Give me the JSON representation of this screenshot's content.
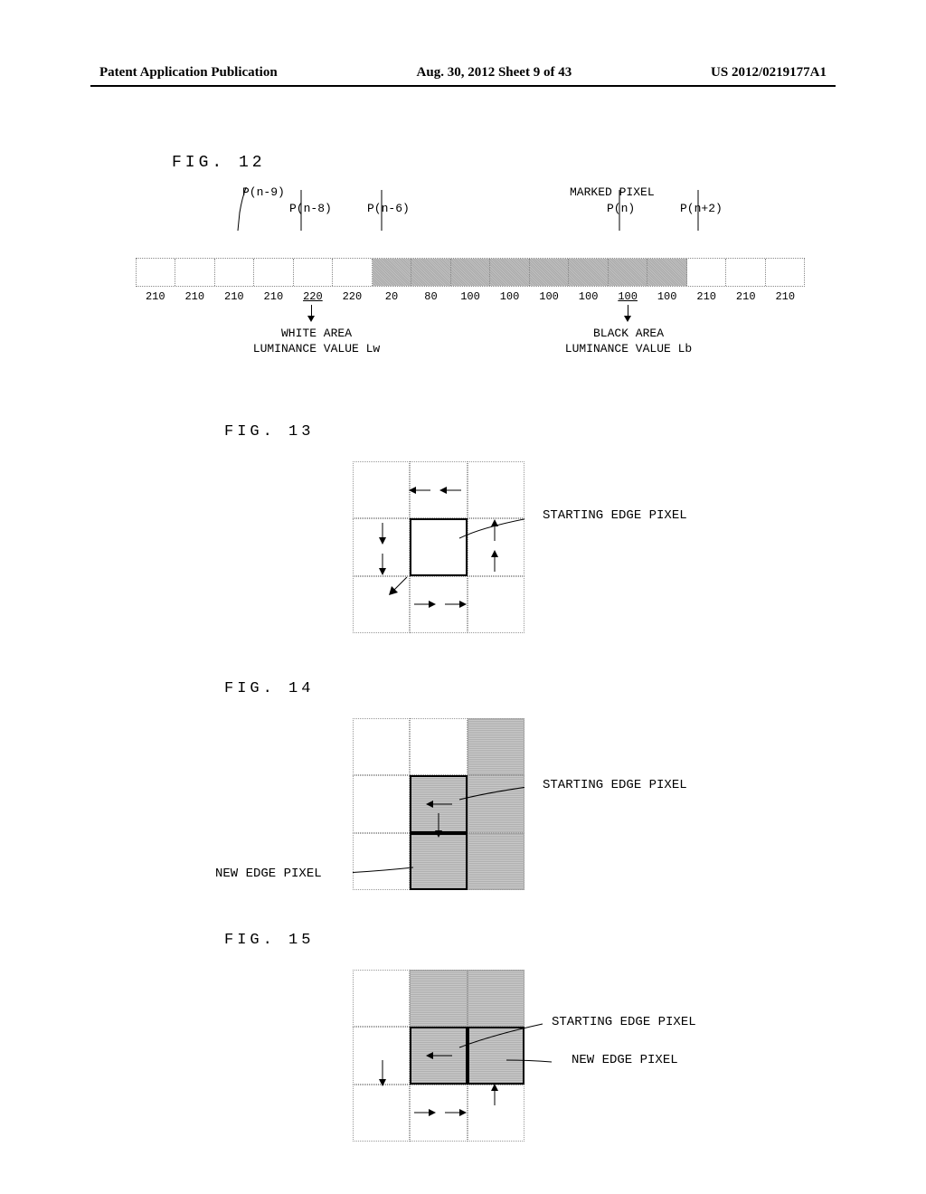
{
  "header": {
    "left": "Patent Application Publication",
    "mid": "Aug. 30, 2012  Sheet 9 of 43",
    "right": "US 2012/0219177A1"
  },
  "fig12": {
    "title": "FIG. 12",
    "topLabels": {
      "pn9": "P(n-9)",
      "pn8": "P(n-8)",
      "pn6": "P(n-6)",
      "marked": "MARKED PIXEL",
      "pn": "P(n)",
      "pn2": "P(n+2)"
    },
    "values": [
      "210",
      "210",
      "210",
      "210",
      "220",
      "220",
      "20",
      "80",
      "100",
      "100",
      "100",
      "100",
      "100",
      "100",
      "210",
      "210",
      "210"
    ],
    "whiteLabel1": "WHITE AREA",
    "whiteLabel2": "LUMINANCE VALUE Lw",
    "blackLabel1": "BLACK AREA",
    "blackLabel2": "LUMINANCE VALUE Lb",
    "underlineIdx1": 4,
    "underlineIdx2": 12,
    "shadedStart": 6,
    "shadedEnd": 13
  },
  "fig13": {
    "title": "FIG. 13",
    "label": "STARTING EDGE PIXEL"
  },
  "fig14": {
    "title": "FIG. 14",
    "labelStart": "STARTING EDGE PIXEL",
    "labelNew": "NEW EDGE PIXEL"
  },
  "fig15": {
    "title": "FIG. 15",
    "labelStart": "STARTING EDGE PIXEL",
    "labelNew": "NEW EDGE PIXEL"
  }
}
